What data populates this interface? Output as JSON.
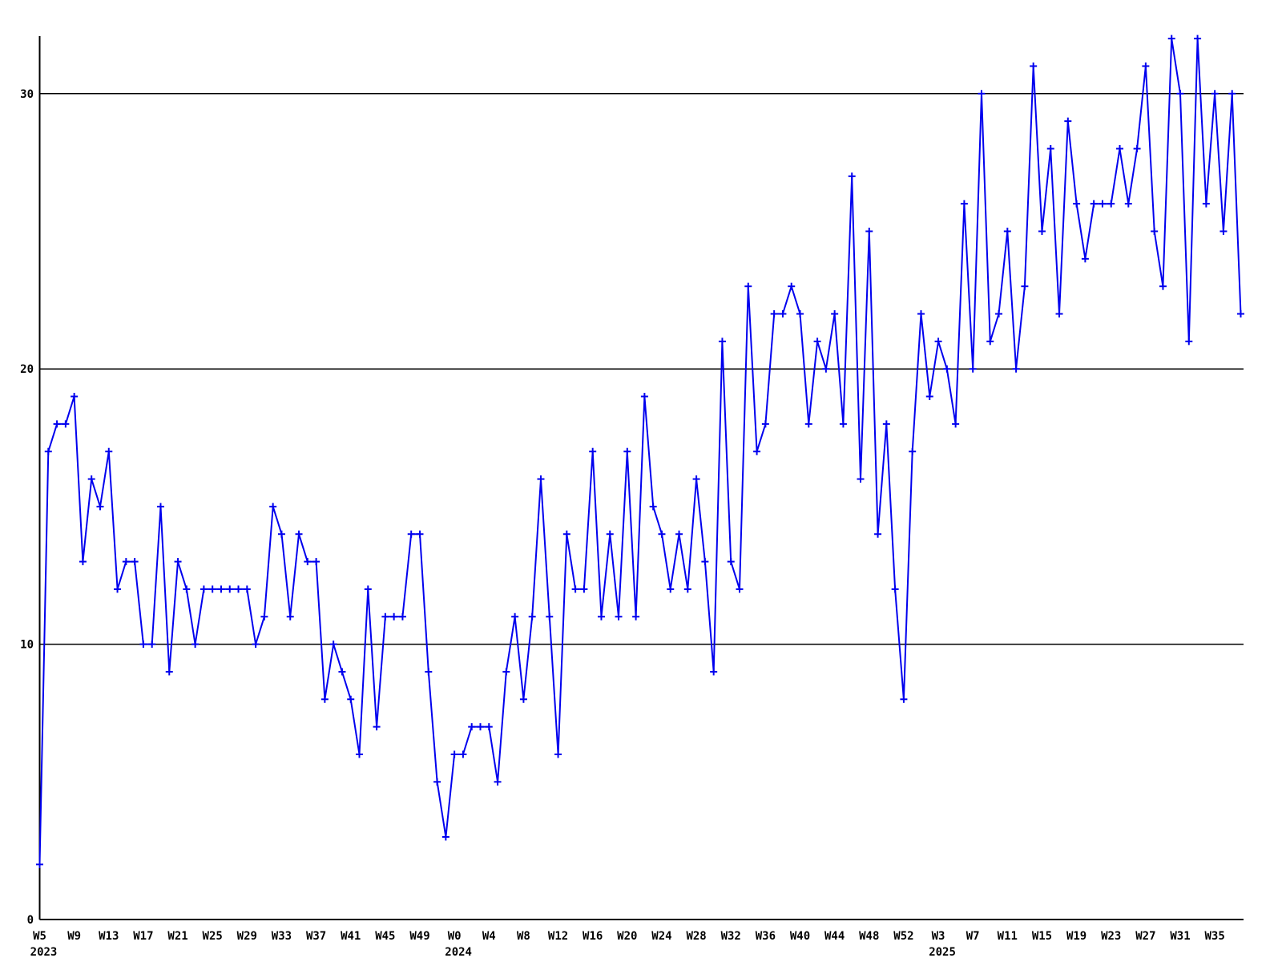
{
  "chart_data": {
    "type": "line",
    "title": "",
    "xlabel": "",
    "ylabel": "",
    "legend": "none",
    "grid": "horizontal black lines at 10, 20, 30",
    "marker": "plus",
    "line_color": "#0000ee",
    "grid_color": "#000000",
    "axis_color": "#000000",
    "text_color": "#000000",
    "background_color": "#ffffff",
    "ylim": [
      0,
      32.1
    ],
    "y_tick_labels": [
      "0",
      "10",
      "20",
      "30"
    ],
    "y_tick_values": [
      0,
      10,
      20,
      30
    ],
    "gridline_values": [
      10,
      20,
      30
    ],
    "tick_every": 4,
    "x_tick_labels": [
      {
        "label": "W5",
        "year": "2023"
      },
      {
        "label": "W9",
        "year": ""
      },
      {
        "label": "W13",
        "year": ""
      },
      {
        "label": "W17",
        "year": ""
      },
      {
        "label": "W21",
        "year": ""
      },
      {
        "label": "W25",
        "year": ""
      },
      {
        "label": "W29",
        "year": ""
      },
      {
        "label": "W33",
        "year": ""
      },
      {
        "label": "W37",
        "year": ""
      },
      {
        "label": "W41",
        "year": ""
      },
      {
        "label": "W45",
        "year": ""
      },
      {
        "label": "W49",
        "year": ""
      },
      {
        "label": "W0",
        "year": "2024"
      },
      {
        "label": "W4",
        "year": ""
      },
      {
        "label": "W8",
        "year": ""
      },
      {
        "label": "W12",
        "year": ""
      },
      {
        "label": "W16",
        "year": ""
      },
      {
        "label": "W20",
        "year": ""
      },
      {
        "label": "W24",
        "year": ""
      },
      {
        "label": "W28",
        "year": ""
      },
      {
        "label": "W32",
        "year": ""
      },
      {
        "label": "W36",
        "year": ""
      },
      {
        "label": "W40",
        "year": ""
      },
      {
        "label": "W44",
        "year": ""
      },
      {
        "label": "W48",
        "year": ""
      },
      {
        "label": "W52",
        "year": ""
      },
      {
        "label": "W3",
        "year": "2025"
      },
      {
        "label": "W7",
        "year": ""
      },
      {
        "label": "W11",
        "year": ""
      },
      {
        "label": "W15",
        "year": ""
      },
      {
        "label": "W19",
        "year": ""
      },
      {
        "label": "W23",
        "year": ""
      },
      {
        "label": "W27",
        "year": ""
      },
      {
        "label": "W31",
        "year": ""
      },
      {
        "label": "W35",
        "year": ""
      }
    ],
    "values": [
      2,
      17,
      18,
      18,
      19,
      13,
      16,
      15,
      17,
      12,
      13,
      13,
      10,
      10,
      15,
      9,
      13,
      12,
      10,
      12,
      12,
      12,
      12,
      12,
      12,
      10,
      11,
      15,
      14,
      11,
      14,
      13,
      13,
      8,
      10,
      9,
      8,
      6,
      12,
      7,
      11,
      11,
      11,
      14,
      14,
      9,
      5,
      3,
      6,
      6,
      7,
      7,
      7,
      5,
      9,
      11,
      8,
      11,
      16,
      11,
      6,
      14,
      12,
      12,
      17,
      11,
      14,
      11,
      17,
      11,
      19,
      15,
      14,
      12,
      14,
      12,
      16,
      13,
      9,
      21,
      13,
      12,
      23,
      17,
      18,
      22,
      22,
      23,
      22,
      18,
      21,
      20,
      22,
      18,
      27,
      16,
      25,
      14,
      18,
      12,
      8,
      17,
      22,
      19,
      21,
      20,
      18,
      26,
      20,
      30,
      21,
      22,
      25,
      20,
      23,
      31,
      25,
      28,
      22,
      29,
      26,
      24,
      26,
      26,
      26,
      28,
      26,
      28,
      31,
      25,
      23,
      32,
      30,
      21,
      32,
      26,
      30,
      25,
      30,
      22
    ]
  }
}
